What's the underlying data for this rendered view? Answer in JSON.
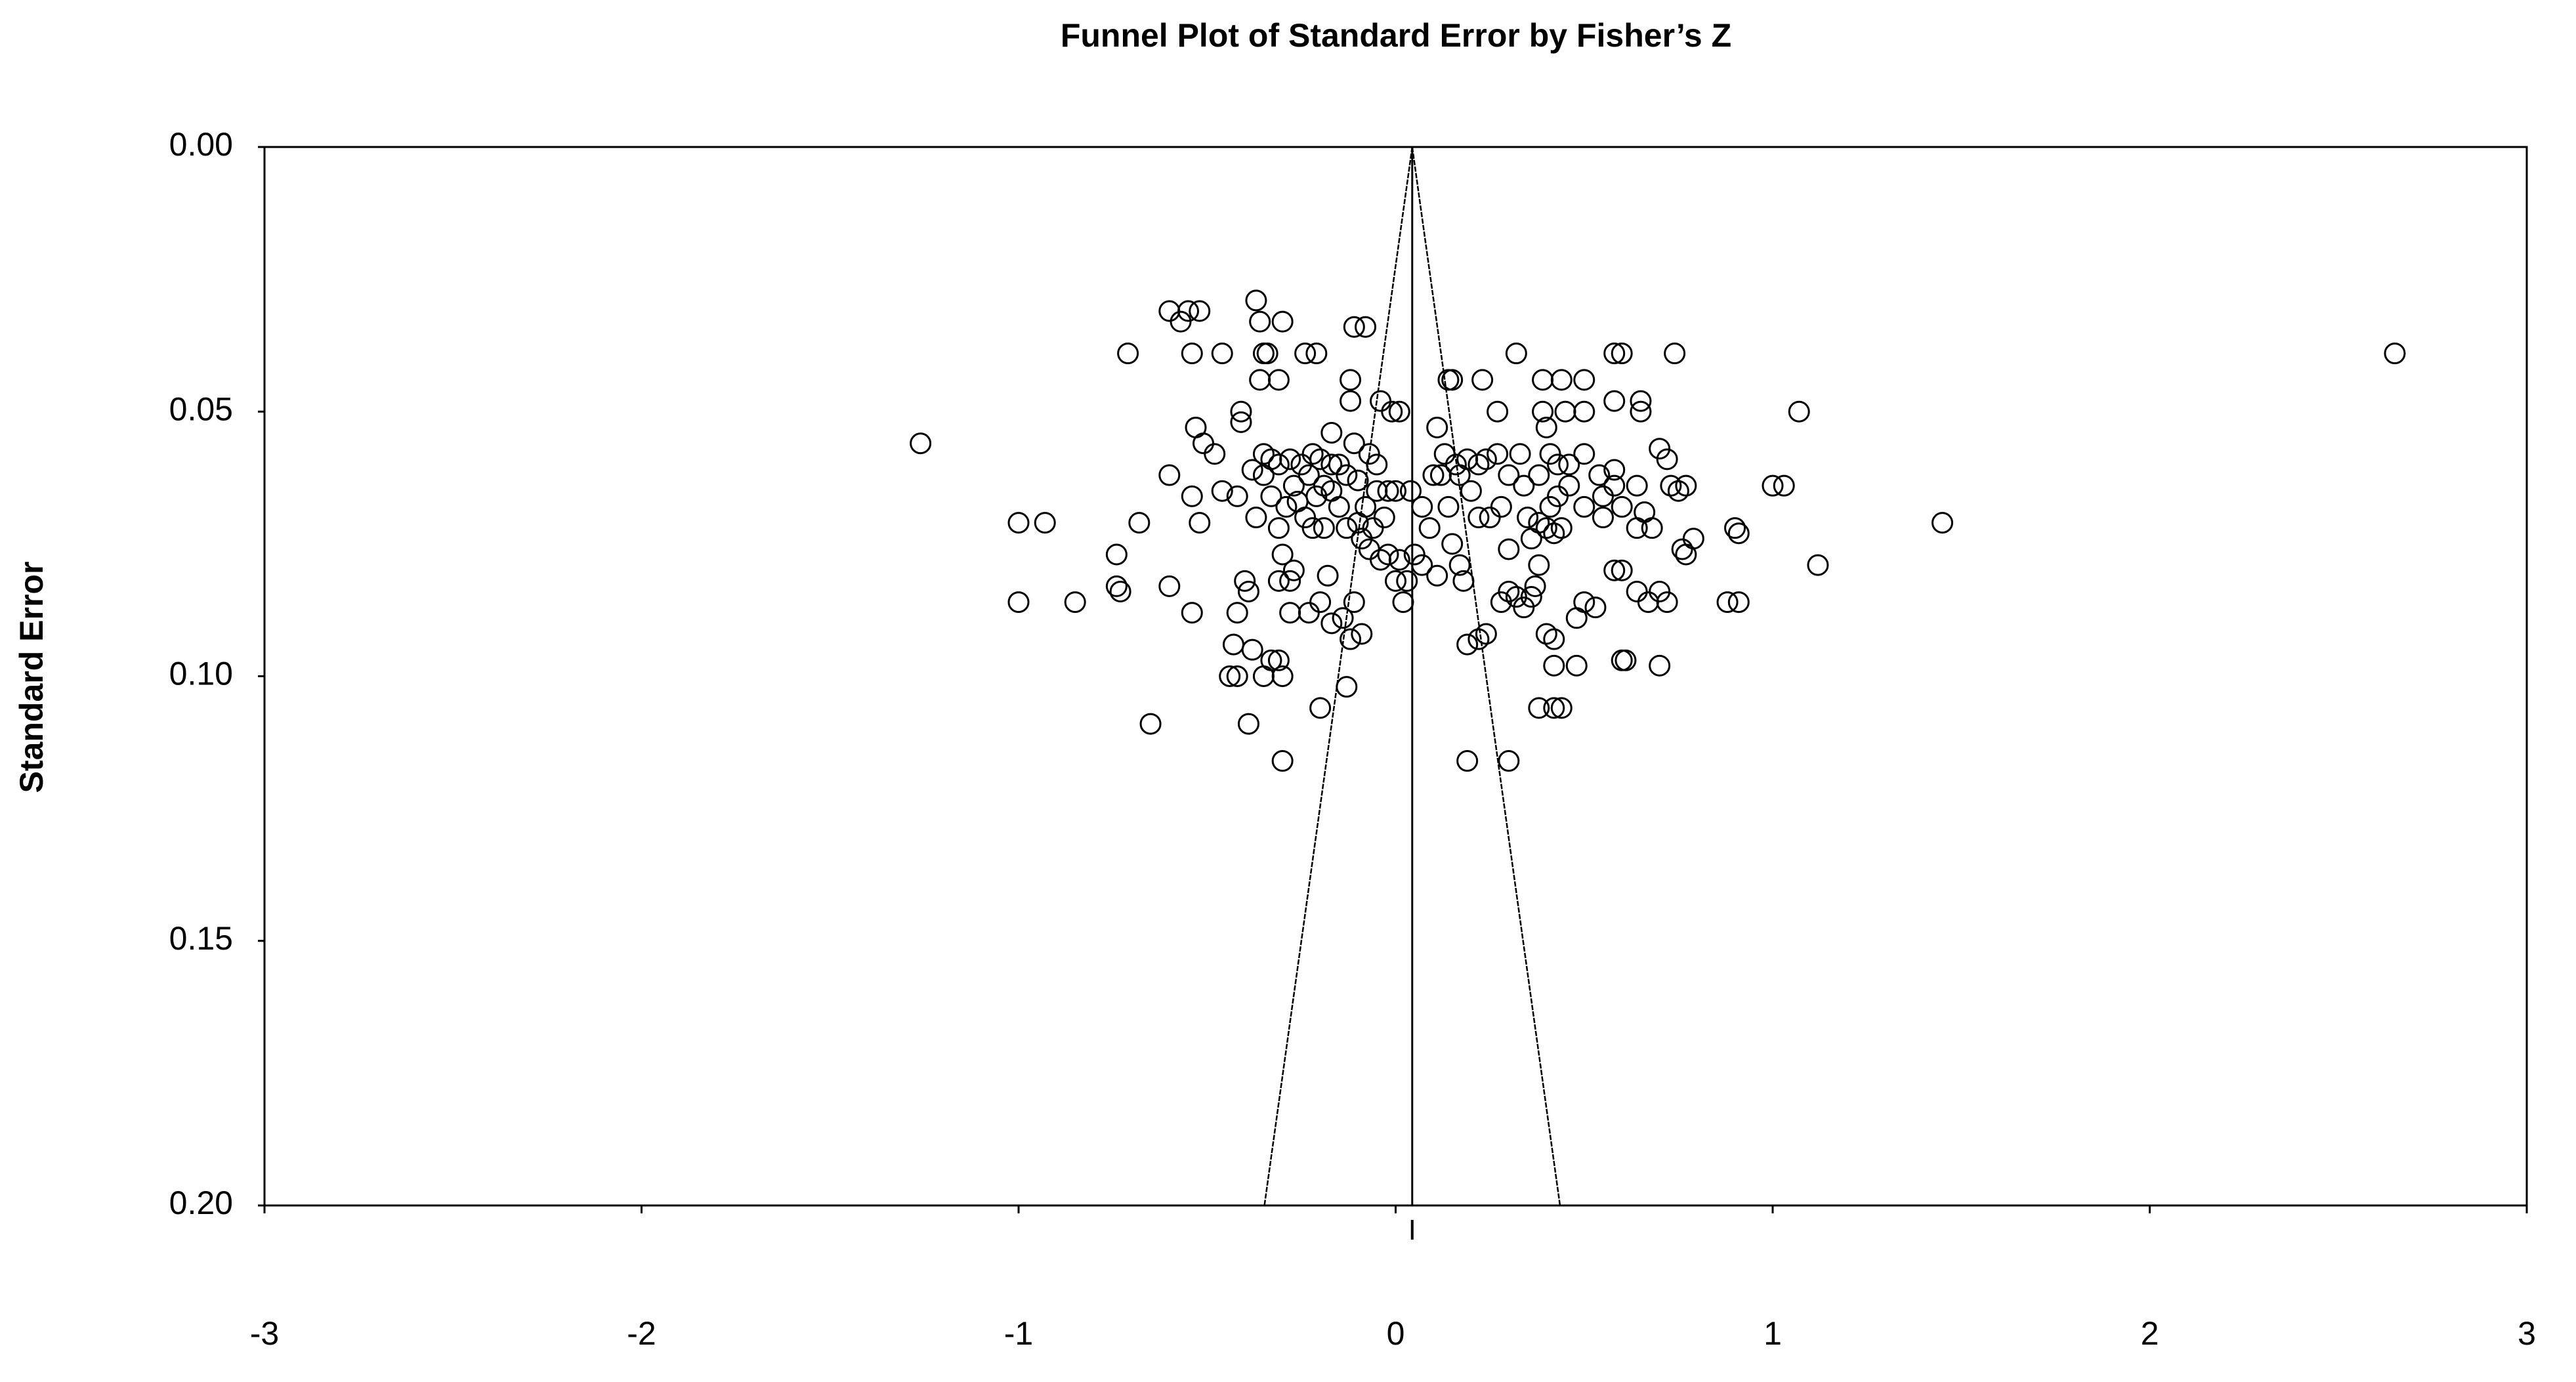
{
  "chart_data": {
    "type": "scatter",
    "title": "Funnel Plot of Standard Error by Fisher’s Z",
    "y_label": "Standard Error",
    "xlim": [
      -3,
      3
    ],
    "xticks": [
      -3,
      -2,
      -1,
      0,
      1,
      2,
      3
    ],
    "ylim": [
      0,
      0.2
    ],
    "yticks": [
      {
        "value": 0,
        "label": "0.00"
      },
      {
        "value": 0.05,
        "label": "0.05"
      },
      {
        "value": 0.1,
        "label": "0.10"
      },
      {
        "value": 0.15,
        "label": "0.15"
      },
      {
        "value": 0.2,
        "label": "0.20"
      }
    ],
    "y_inverted": true,
    "marker_color": "#000000",
    "mean_effect": 0.044,
    "funnel_bottom": [
      -0.348,
      0.436
    ],
    "x": [
      2.65,
      -1.26,
      1.45,
      1.12,
      1.07,
      1.0,
      1.03,
      -1.0,
      -0.93,
      -1.0,
      -0.85,
      -0.74,
      -0.74,
      -0.73,
      -0.65,
      -0.68,
      -0.6,
      -0.6,
      -0.54,
      -0.6,
      -0.57,
      -0.55,
      -0.52,
      -0.71,
      -0.54,
      -0.46,
      -0.37,
      -0.36,
      -0.34,
      -0.35,
      -0.3,
      -0.24,
      -0.21,
      -0.36,
      -0.31,
      -0.11,
      -0.08,
      -0.12,
      -0.12,
      -0.04,
      -0.01,
      0.01,
      -0.41,
      -0.41,
      -0.53,
      -0.51,
      -0.48,
      -0.54,
      -0.52,
      -0.46,
      -0.42,
      -0.38,
      -0.35,
      0.32,
      0.58,
      0.6,
      0.74,
      0.14,
      0.15,
      0.23,
      0.39,
      0.44,
      0.5,
      0.27,
      0.39,
      0.45,
      0.5,
      0.58,
      0.65,
      0.65,
      0.11,
      0.4,
      0.13,
      0.16,
      0.19,
      0.22,
      0.24,
      0.33,
      0.41,
      0.43,
      0.58,
      0.24,
      0.28,
      0.3,
      0.32,
      0.34,
      0.36,
      0.37,
      0.19,
      0.22,
      0.4,
      0.42,
      0.48,
      0.5,
      0.53,
      0.42,
      0.48,
      0.6,
      0.61,
      0.7,
      0.38,
      0.42,
      0.44,
      0.19,
      0.3,
      -0.3,
      -0.39,
      -0.2,
      -0.13,
      -0.44,
      -0.42,
      -0.33,
      -0.31,
      -0.3,
      -0.35,
      -0.43,
      -0.38,
      -0.42,
      -0.4,
      -0.39,
      -0.31,
      -0.28,
      -0.28,
      -0.23,
      -0.2,
      -0.17,
      -0.14,
      -0.11,
      -0.09,
      -0.12,
      -0.3,
      -0.27,
      -0.18,
      -0.07,
      -0.04,
      0.0,
      0.03,
      0.07,
      0.11,
      0.17,
      0.18,
      0.15,
      0.3,
      0.36,
      0.38,
      0.42,
      0.55,
      0.58,
      0.6,
      0.64,
      0.67,
      0.7,
      0.72,
      0.76,
      0.79,
      0.77,
      0.88,
      0.91,
      0.9,
      0.91,
      0.72,
      0.73,
      0.75,
      0.77,
      0.7,
      0.64,
      0.66,
      0.68,
      0.64,
      0.6,
      0.55,
      0.5,
      0.46,
      0.43,
      0.41,
      0.4,
      0.44,
      0.38,
      0.35,
      0.28,
      0.25,
      0.22,
      0.2,
      0.17,
      0.1,
      0.12,
      0.07,
      0.04,
      0.0,
      -0.02,
      -0.05,
      -0.03,
      -0.06,
      -0.08,
      -0.1,
      -0.09,
      -0.13,
      -0.15,
      -0.17,
      -0.19,
      -0.21,
      -0.23,
      -0.25,
      -0.27,
      -0.29,
      -0.31,
      -0.33,
      -0.35,
      -0.37,
      -0.24,
      -0.2,
      -0.17,
      -0.15,
      -0.13,
      -0.1,
      -0.07,
      -0.05,
      -0.11,
      -0.17,
      -0.22,
      -0.28,
      -0.31,
      -0.33,
      -0.26,
      -0.22,
      -0.19,
      0.02,
      0.01,
      -0.02,
      0.05,
      0.09,
      0.14,
      0.27,
      0.3,
      0.34,
      0.38,
      0.46,
      0.5,
      0.54,
      0.58
    ],
    "values": [
      0.039,
      0.056,
      0.071,
      0.079,
      0.05,
      0.064,
      0.064,
      0.071,
      0.071,
      0.086,
      0.086,
      0.077,
      0.083,
      0.084,
      0.109,
      0.071,
      0.062,
      0.083,
      0.088,
      0.031,
      0.033,
      0.031,
      0.031,
      0.039,
      0.039,
      0.039,
      0.029,
      0.033,
      0.039,
      0.039,
      0.033,
      0.039,
      0.039,
      0.044,
      0.044,
      0.034,
      0.034,
      0.044,
      0.048,
      0.048,
      0.05,
      0.05,
      0.05,
      0.052,
      0.053,
      0.056,
      0.058,
      0.066,
      0.071,
      0.065,
      0.066,
      0.061,
      0.058,
      0.039,
      0.039,
      0.039,
      0.039,
      0.044,
      0.044,
      0.044,
      0.044,
      0.044,
      0.044,
      0.05,
      0.05,
      0.05,
      0.05,
      0.048,
      0.048,
      0.05,
      0.053,
      0.053,
      0.058,
      0.06,
      0.059,
      0.06,
      0.059,
      0.058,
      0.058,
      0.06,
      0.061,
      0.092,
      0.086,
      0.084,
      0.085,
      0.087,
      0.085,
      0.083,
      0.094,
      0.093,
      0.092,
      0.093,
      0.089,
      0.086,
      0.087,
      0.098,
      0.098,
      0.097,
      0.097,
      0.098,
      0.106,
      0.106,
      0.106,
      0.116,
      0.116,
      0.116,
      0.109,
      0.106,
      0.102,
      0.1,
      0.1,
      0.097,
      0.097,
      0.1,
      0.1,
      0.094,
      0.095,
      0.088,
      0.082,
      0.084,
      0.082,
      0.082,
      0.088,
      0.088,
      0.086,
      0.09,
      0.089,
      0.086,
      0.092,
      0.093,
      0.077,
      0.08,
      0.081,
      0.076,
      0.078,
      0.082,
      0.082,
      0.079,
      0.081,
      0.079,
      0.082,
      0.075,
      0.076,
      0.074,
      0.079,
      0.073,
      0.07,
      0.08,
      0.08,
      0.084,
      0.086,
      0.084,
      0.086,
      0.076,
      0.074,
      0.077,
      0.086,
      0.086,
      0.072,
      0.073,
      0.059,
      0.064,
      0.065,
      0.064,
      0.057,
      0.064,
      0.069,
      0.072,
      0.072,
      0.068,
      0.066,
      0.068,
      0.064,
      0.066,
      0.068,
      0.072,
      0.072,
      0.071,
      0.07,
      0.068,
      0.07,
      0.07,
      0.065,
      0.062,
      0.062,
      0.062,
      0.068,
      0.065,
      0.065,
      0.065,
      0.065,
      0.07,
      0.072,
      0.068,
      0.071,
      0.074,
      0.072,
      0.068,
      0.065,
      0.064,
      0.066,
      0.062,
      0.06,
      0.064,
      0.068,
      0.072,
      0.066,
      0.062,
      0.07,
      0.07,
      0.059,
      0.06,
      0.06,
      0.062,
      0.063,
      0.058,
      0.06,
      0.056,
      0.054,
      0.058,
      0.059,
      0.06,
      0.059,
      0.067,
      0.072,
      0.072,
      0.086,
      0.078,
      0.077,
      0.077,
      0.072,
      0.068,
      0.058,
      0.062,
      0.064,
      0.062,
      0.06,
      0.058,
      0.062,
      0.064
    ]
  }
}
